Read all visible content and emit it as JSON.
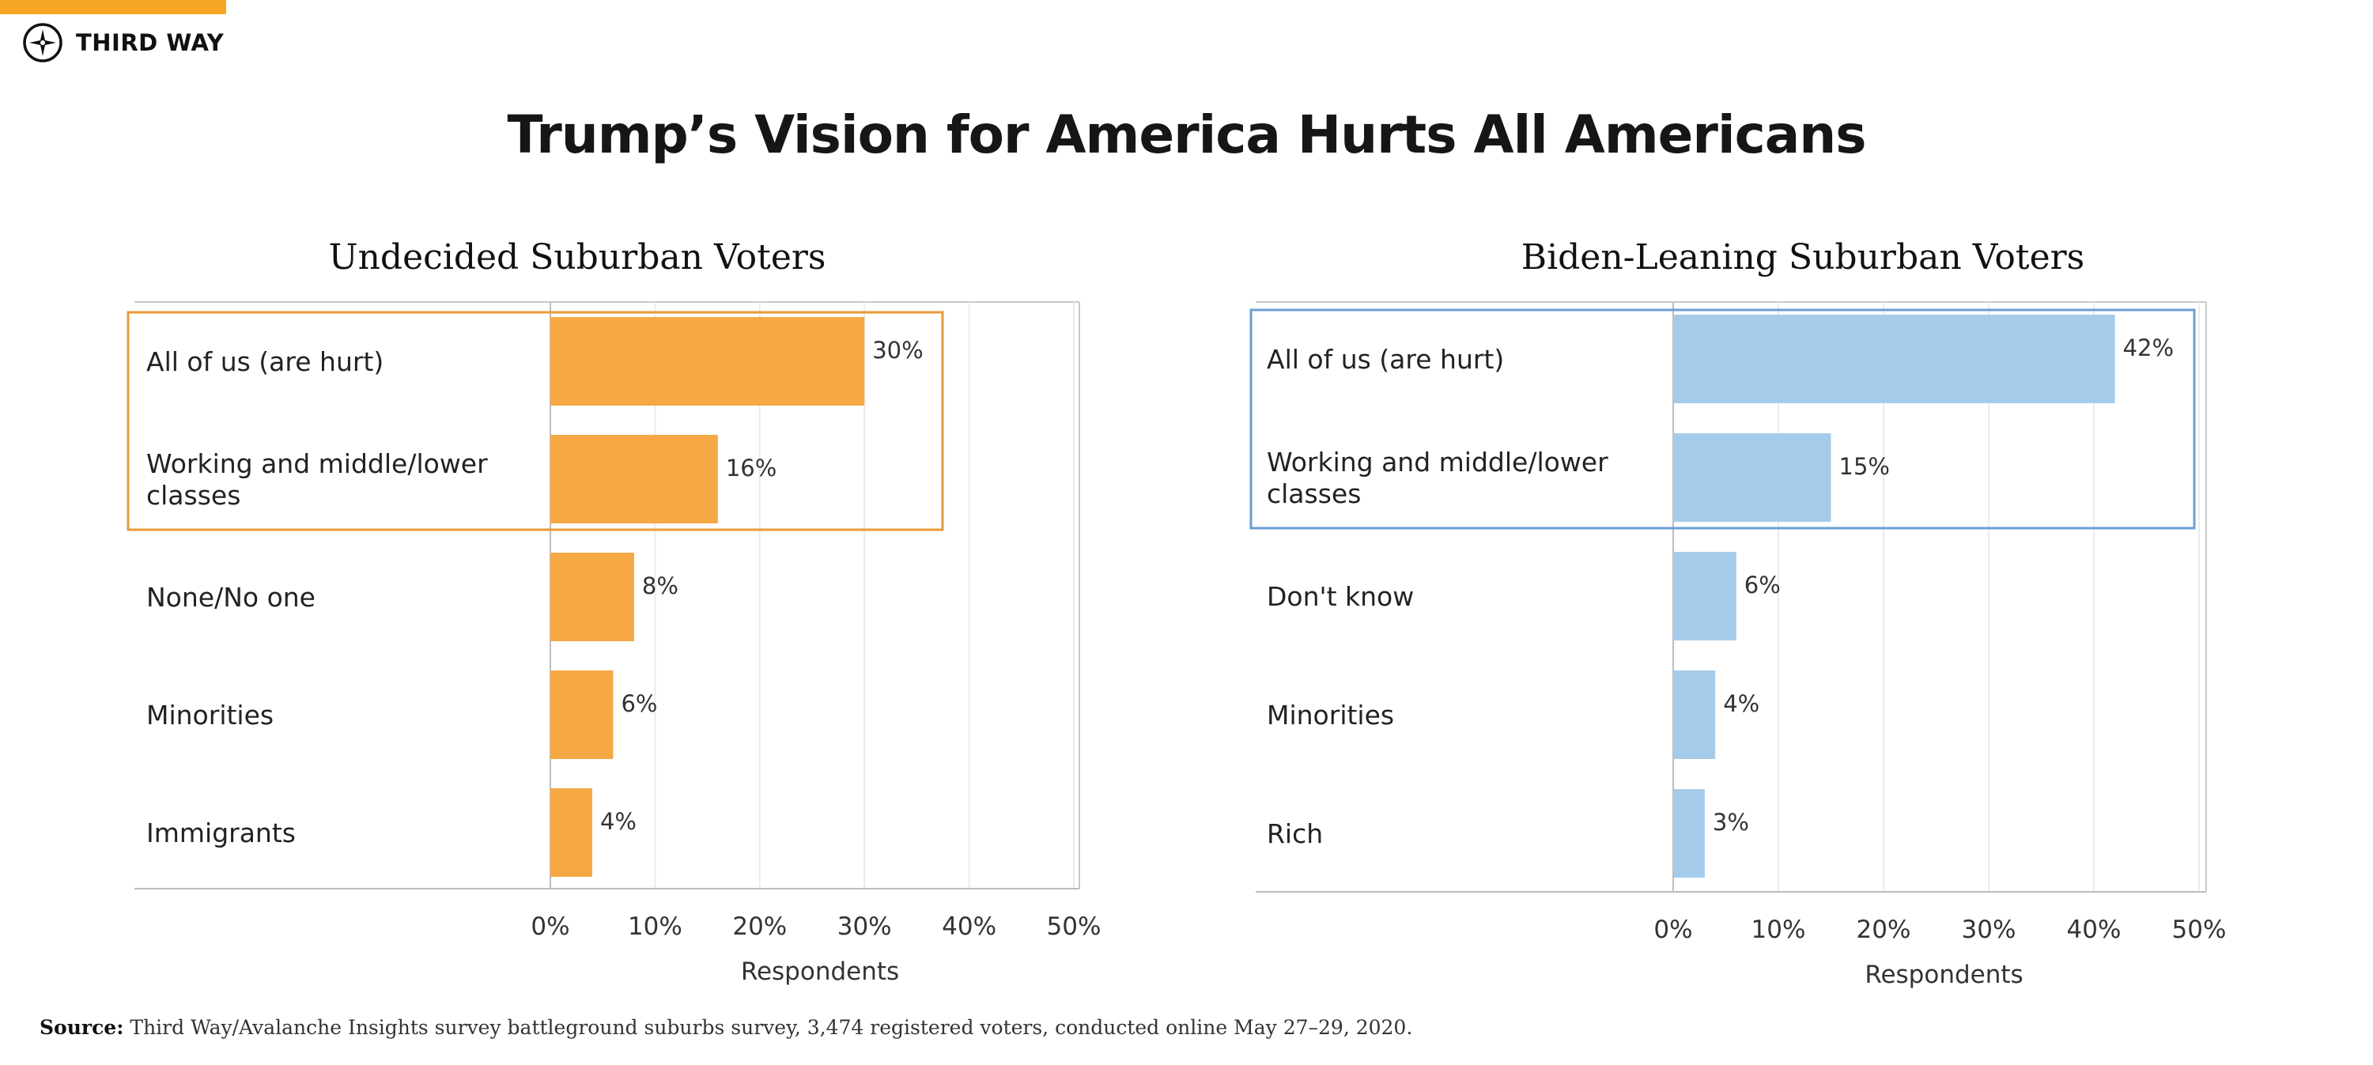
{
  "brand": {
    "name": "THIRD WAY",
    "accent": "#f5a623"
  },
  "title": "Trump’s Vision for America Hurts All Americans",
  "source": {
    "label": "Source:",
    "text": "Third Way/Avalanche Insights survey battleground suburbs survey, 3,474 registered voters, conducted online May 27–29, 2020."
  },
  "chart_data": [
    {
      "type": "bar",
      "orientation": "horizontal",
      "title": "Undecided Suburban Voters",
      "categories": [
        "All of us (are hurt)",
        "Working and middle/lower classes",
        "None/No one",
        "Minorities",
        "Immigrants"
      ],
      "values": [
        30,
        16,
        8,
        6,
        4
      ],
      "value_labels": [
        "30%",
        "16%",
        "8%",
        "6%",
        "4%"
      ],
      "xlabel": "Respondents",
      "xlim": [
        0,
        50
      ],
      "xticks": [
        "0%",
        "10%",
        "20%",
        "30%",
        "40%",
        "50%"
      ],
      "color": "#f5a844",
      "highlight_color": "#e89a3a",
      "highlight_top_n": 2
    },
    {
      "type": "bar",
      "orientation": "horizontal",
      "title": "Biden-Leaning Suburban Voters",
      "categories": [
        "All of us (are hurt)",
        "Working and middle/lower classes",
        "Don't know",
        "Minorities",
        "Rich"
      ],
      "values": [
        42,
        15,
        6,
        4,
        3
      ],
      "value_labels": [
        "42%",
        "15%",
        "6%",
        "4%",
        "3%"
      ],
      "xlabel": "Respondents",
      "xlim": [
        0,
        50
      ],
      "xticks": [
        "0%",
        "10%",
        "20%",
        "30%",
        "40%",
        "50%"
      ],
      "color": "#a5cbea",
      "highlight_color": "#6a9fd4",
      "highlight_top_n": 2
    }
  ]
}
